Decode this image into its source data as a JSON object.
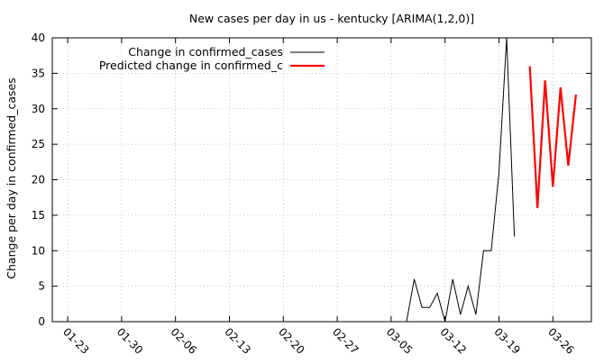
{
  "chart_data": {
    "type": "line",
    "title": "New cases per day in us - kentucky [ARIMA(1,2,0)]",
    "xlabel": "",
    "ylabel": "Change per day in confirmed_cases",
    "start_date": "2020-01-22",
    "x_ticks": [
      {
        "date": "2020-01-23",
        "label": "01-23"
      },
      {
        "date": "2020-01-30",
        "label": "01-30"
      },
      {
        "date": "2020-02-06",
        "label": "02-06"
      },
      {
        "date": "2020-02-13",
        "label": "02-13"
      },
      {
        "date": "2020-02-20",
        "label": "02-20"
      },
      {
        "date": "2020-02-27",
        "label": "02-27"
      },
      {
        "date": "2020-03-05",
        "label": "03-05"
      },
      {
        "date": "2020-03-12",
        "label": "03-12"
      },
      {
        "date": "2020-03-19",
        "label": "03-19"
      },
      {
        "date": "2020-03-26",
        "label": "03-26"
      }
    ],
    "xlim": [
      "2020-01-21",
      "2020-03-31"
    ],
    "ylim": [
      0,
      40
    ],
    "y_ticks": [
      0,
      5,
      10,
      15,
      20,
      25,
      30,
      35,
      40
    ],
    "grid": true,
    "legend_position": "top-left",
    "series": [
      {
        "name": "Change in confirmed_cases",
        "color": "#000000",
        "x": [
          "2020-01-23",
          "2020-01-24",
          "2020-01-25",
          "2020-01-26",
          "2020-01-27",
          "2020-01-28",
          "2020-01-29",
          "2020-01-30",
          "2020-01-31",
          "2020-02-01",
          "2020-02-02",
          "2020-02-03",
          "2020-02-04",
          "2020-02-05",
          "2020-02-06",
          "2020-02-07",
          "2020-02-08",
          "2020-02-09",
          "2020-02-10",
          "2020-02-11",
          "2020-02-12",
          "2020-02-13",
          "2020-02-14",
          "2020-02-15",
          "2020-02-16",
          "2020-02-17",
          "2020-02-18",
          "2020-02-19",
          "2020-02-20",
          "2020-02-21",
          "2020-02-22",
          "2020-02-23",
          "2020-02-24",
          "2020-02-25",
          "2020-02-26",
          "2020-02-27",
          "2020-02-28",
          "2020-02-29",
          "2020-03-01",
          "2020-03-02",
          "2020-03-03",
          "2020-03-04",
          "2020-03-05",
          "2020-03-06",
          "2020-03-07",
          "2020-03-08",
          "2020-03-09",
          "2020-03-10",
          "2020-03-11",
          "2020-03-12",
          "2020-03-13",
          "2020-03-14",
          "2020-03-15",
          "2020-03-16",
          "2020-03-17",
          "2020-03-18",
          "2020-03-19",
          "2020-03-20",
          "2020-03-21"
        ],
        "values": [
          0,
          0,
          0,
          0,
          0,
          0,
          0,
          0,
          0,
          0,
          0,
          0,
          0,
          0,
          0,
          0,
          0,
          0,
          0,
          0,
          0,
          0,
          0,
          0,
          0,
          0,
          0,
          0,
          0,
          0,
          0,
          0,
          0,
          0,
          0,
          0,
          0,
          0,
          0,
          0,
          0,
          0,
          0,
          0,
          0,
          6,
          2,
          2,
          4,
          0,
          6,
          1,
          5,
          1,
          10,
          10,
          21,
          40,
          12
        ]
      },
      {
        "name": "Predicted change in confirmed_c",
        "color": "#ff0000",
        "x": [
          "2020-03-23",
          "2020-03-24",
          "2020-03-25",
          "2020-03-26",
          "2020-03-27",
          "2020-03-28",
          "2020-03-29"
        ],
        "values": [
          36,
          16,
          34,
          19,
          33,
          22,
          32
        ]
      }
    ]
  }
}
